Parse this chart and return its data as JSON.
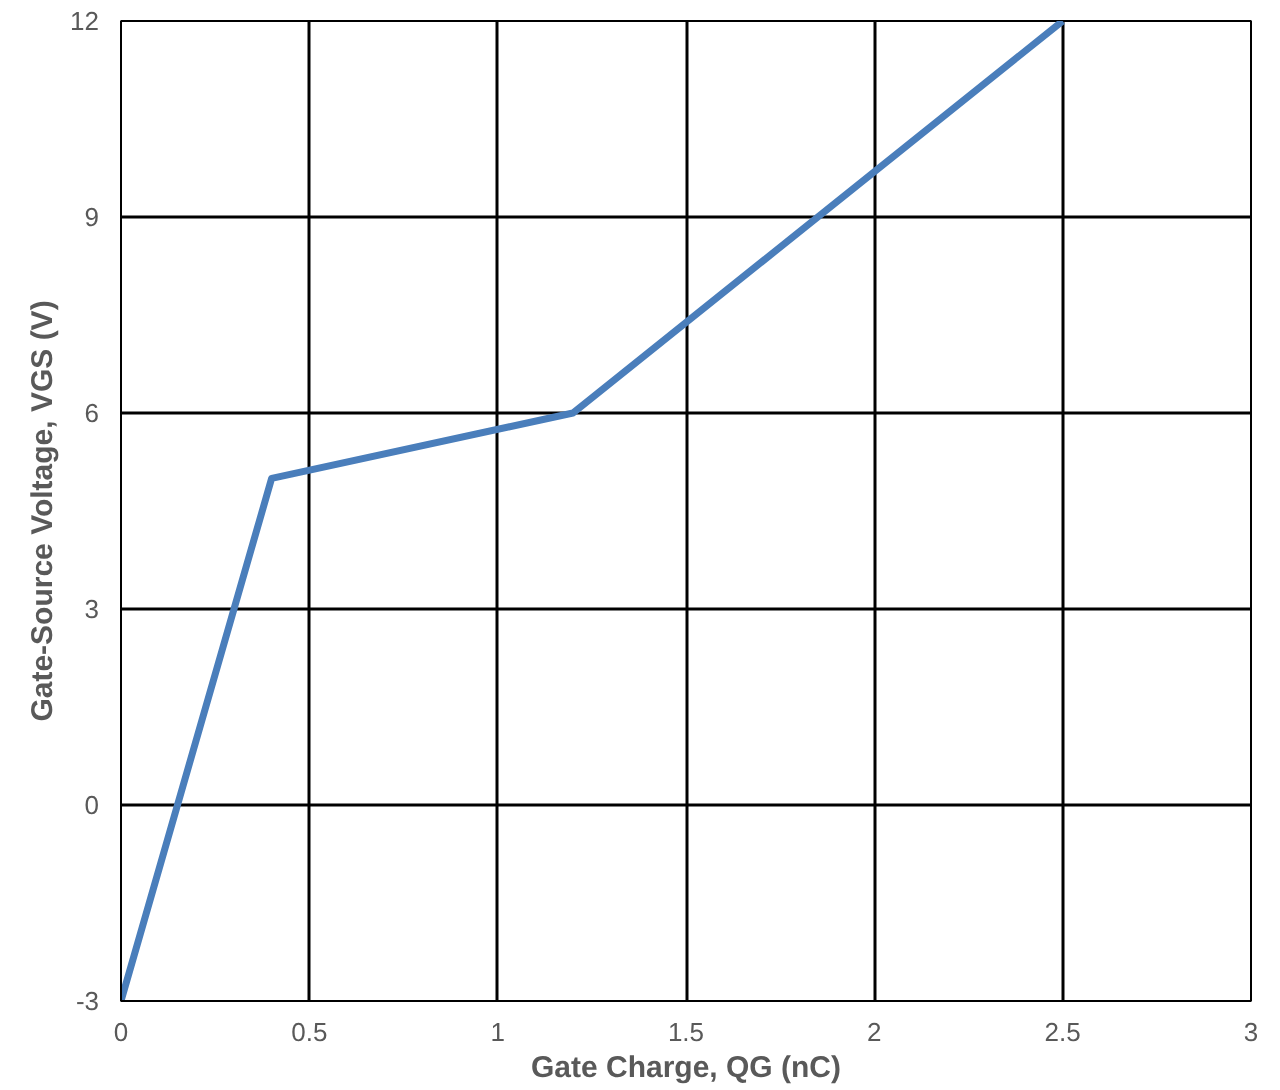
{
  "chart_data": {
    "type": "line",
    "xlabel": "Gate Charge, QG (nC)",
    "ylabel": "Gate-Source Voltage, VGS (V)",
    "x": [
      0,
      0.4,
      1.2,
      2.5
    ],
    "series": [
      {
        "color": "#4a7ebb",
        "values": [
          -3,
          5,
          6,
          12
        ]
      }
    ],
    "xlim": [
      0,
      3
    ],
    "ylim": [
      -3,
      12
    ],
    "xticks": [
      0,
      0.5,
      1,
      1.5,
      2,
      2.5,
      3
    ],
    "yticks": [
      -3,
      0,
      3,
      6,
      9,
      12
    ],
    "grid": true,
    "marker": "none",
    "line_style": "solid"
  }
}
